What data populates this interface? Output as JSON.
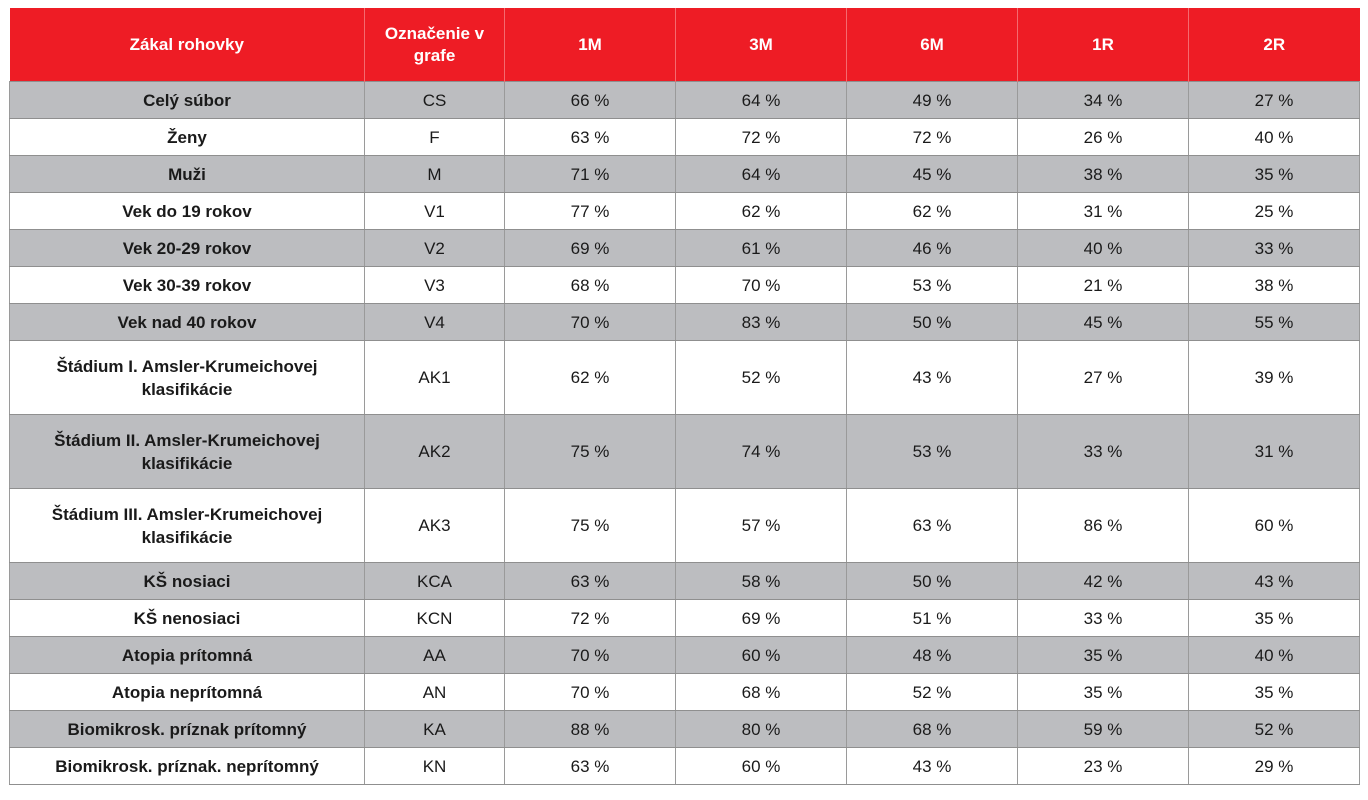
{
  "colors": {
    "header_bg": "#ee1c25",
    "alt_row_bg": "#bcbdc0",
    "header_text": "#ffffff"
  },
  "table": {
    "headers": [
      "Zákal rohovky",
      "Označenie v grafe",
      "1M",
      "3M",
      "6M",
      "1R",
      "2R"
    ],
    "rows": [
      [
        "Celý súbor",
        "CS",
        "66 %",
        "64 %",
        "49 %",
        "34 %",
        "27 %"
      ],
      [
        "Ženy",
        "F",
        "63 %",
        "72 %",
        "72 %",
        "26 %",
        "40 %"
      ],
      [
        "Muži",
        "M",
        "71 %",
        "64 %",
        "45 %",
        "38 %",
        "35 %"
      ],
      [
        "Vek do 19 rokov",
        "V1",
        "77 %",
        "62 %",
        "62 %",
        "31 %",
        "25 %"
      ],
      [
        "Vek 20-29 rokov",
        "V2",
        "69 %",
        "61 %",
        "46 %",
        "40 %",
        "33 %"
      ],
      [
        "Vek 30-39 rokov",
        "V3",
        "68 %",
        "70 %",
        "53 %",
        "21 %",
        "38 %"
      ],
      [
        "Vek nad 40 rokov",
        "V4",
        "70 %",
        "83 %",
        "50 %",
        "45 %",
        "55 %"
      ],
      [
        "Štádium I. Amsler-Krumeichovej klasifikácie",
        "AK1",
        "62 %",
        "52 %",
        "43 %",
        "27 %",
        "39 %"
      ],
      [
        "Štádium II. Amsler-Krumeichovej klasifikácie",
        "AK2",
        "75 %",
        "74 %",
        "53 %",
        "33 %",
        "31 %"
      ],
      [
        "Štádium III. Amsler-Krumeichovej klasifikácie",
        "AK3",
        "75 %",
        "57 %",
        "63 %",
        "86 %",
        "60 %"
      ],
      [
        "KŠ nosiaci",
        "KCA",
        "63 %",
        "58 %",
        "50 %",
        "42 %",
        "43 %"
      ],
      [
        "KŠ nenosiaci",
        "KCN",
        "72 %",
        "69 %",
        "51 %",
        "33 %",
        "35 %"
      ],
      [
        "Atopia prítomná",
        "AA",
        "70 %",
        "60 %",
        "48 %",
        "35 %",
        "40 %"
      ],
      [
        "Atopia neprítomná",
        "AN",
        "70 %",
        "68 %",
        "52 %",
        "35 %",
        "35 %"
      ],
      [
        "Biomikrosk. príznak prítomný",
        "KA",
        "88 %",
        "80 %",
        "68 %",
        "59 %",
        "52 %"
      ],
      [
        "Biomikrosk. príznak. neprítomný",
        "KN",
        "63 %",
        "60 %",
        "43 %",
        "23 %",
        "29 %"
      ]
    ]
  }
}
